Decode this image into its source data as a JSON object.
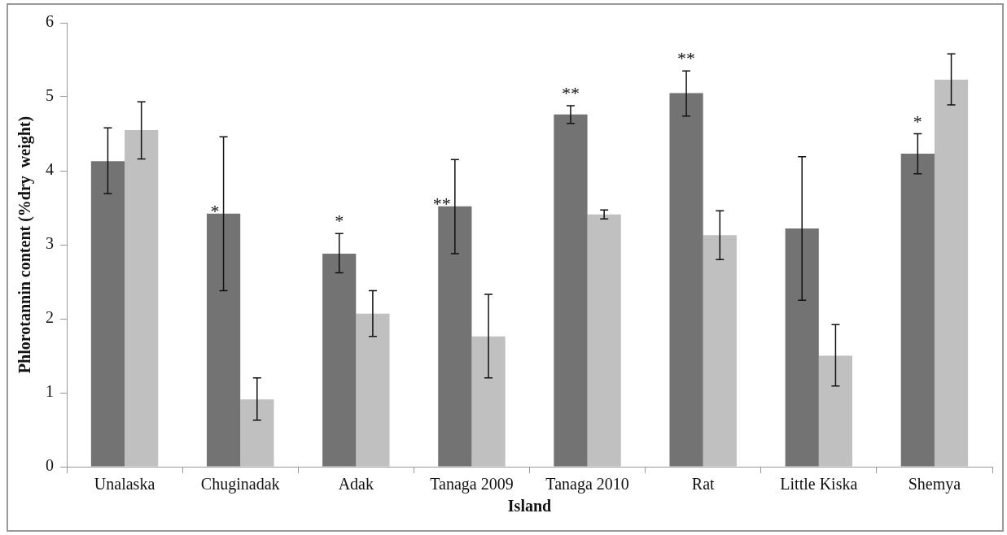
{
  "chart_data": {
    "type": "bar",
    "xlabel": "Island",
    "ylabel": "Phlorotannin content (%dry  weight)",
    "categories": [
      "Unalaska",
      "Chuginadak",
      "Adak",
      "Tanaga 2009",
      "Tanaga 2010",
      "Rat",
      "Little Kiska",
      "Shemya"
    ],
    "series": [
      {
        "color": "#737373",
        "values": [
          4.13,
          3.42,
          2.88,
          3.52,
          4.76,
          5.05,
          3.22,
          4.23
        ],
        "errors": [
          [
            3.69,
            4.58
          ],
          [
            2.38,
            4.46
          ],
          [
            2.62,
            3.15
          ],
          [
            2.88,
            4.15
          ],
          [
            4.64,
            4.88
          ],
          [
            4.74,
            5.35
          ],
          [
            2.25,
            4.19
          ],
          [
            3.96,
            4.5
          ]
        ]
      },
      {
        "color": "#c0c0c0",
        "values": [
          4.55,
          0.91,
          2.07,
          1.76,
          3.41,
          3.13,
          1.5,
          5.23
        ],
        "errors": [
          [
            4.16,
            4.93
          ],
          [
            0.63,
            1.2
          ],
          [
            1.76,
            2.38
          ],
          [
            1.2,
            2.33
          ],
          [
            3.35,
            3.47
          ],
          [
            2.8,
            3.46
          ],
          [
            1.09,
            1.92
          ],
          [
            4.89,
            5.58
          ]
        ]
      }
    ],
    "ylim": [
      0,
      6
    ],
    "yticks": [
      0,
      1,
      2,
      3,
      4,
      5,
      6
    ],
    "grid": false,
    "legend": false,
    "annotations": [
      {
        "text": "*",
        "x": "Chuginadak",
        "y": 3.42
      },
      {
        "text": "*",
        "x": "Adak",
        "y": 2.88
      },
      {
        "text": "**",
        "x": "Tanaga 2009",
        "y": 3.52
      },
      {
        "text": "**",
        "x": "Tanaga 2010",
        "y": 4.76
      },
      {
        "text": "**",
        "x": "Rat",
        "y": 5.05
      },
      {
        "text": "*",
        "x": "Shemya",
        "y": 4.23
      }
    ]
  }
}
